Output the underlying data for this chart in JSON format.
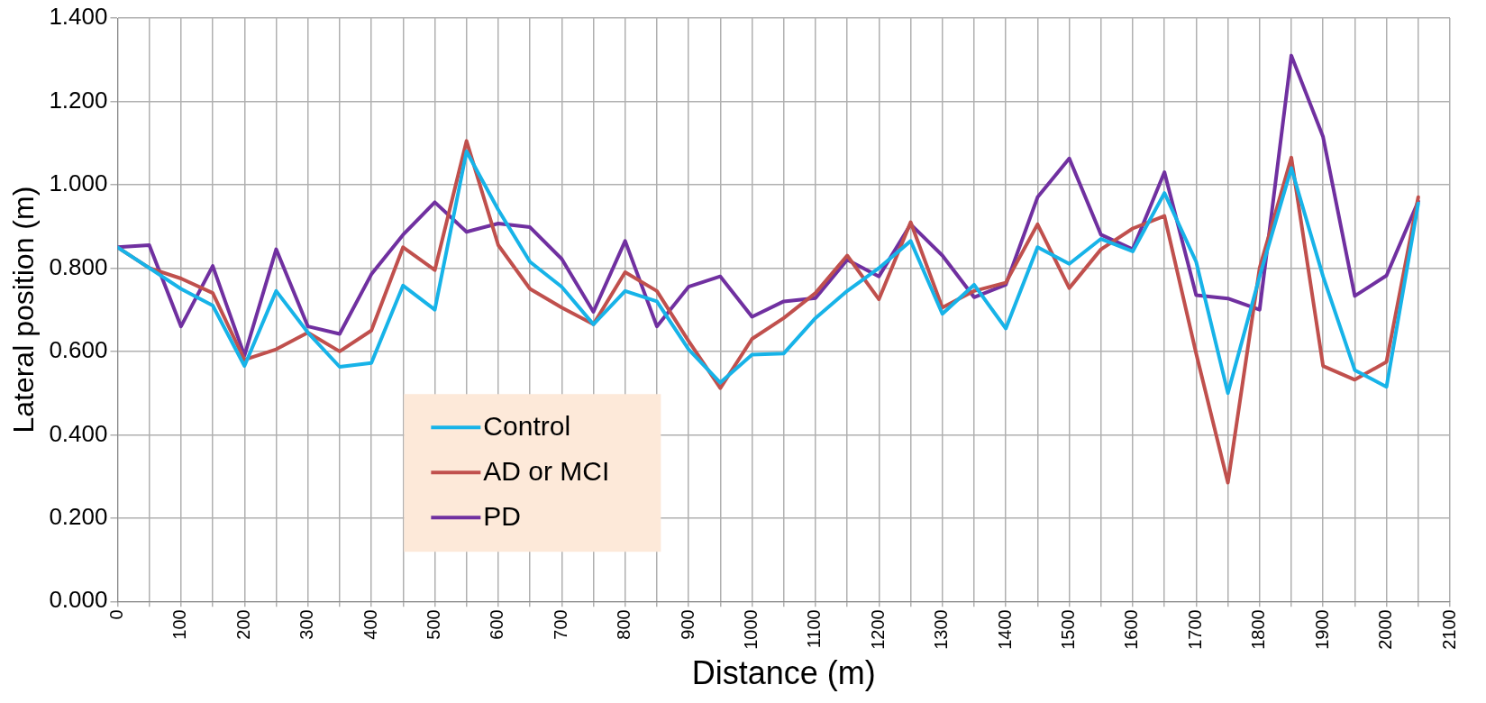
{
  "chart_data": {
    "type": "line",
    "xlabel": "Distance (m)",
    "ylabel": "Lateral position (m)",
    "x": [
      0,
      50,
      100,
      150,
      200,
      250,
      300,
      350,
      400,
      450,
      500,
      550,
      600,
      650,
      700,
      750,
      800,
      850,
      900,
      950,
      1000,
      1050,
      1100,
      1150,
      1200,
      1250,
      1300,
      1350,
      1400,
      1450,
      1500,
      1550,
      1600,
      1650,
      1700,
      1750,
      1800,
      1850,
      1900,
      1950,
      2000,
      2050
    ],
    "series": [
      {
        "name": "Control",
        "color": "#17b3e8",
        "values": [
          0.85,
          0.8,
          0.75,
          0.71,
          0.565,
          0.745,
          0.645,
          0.563,
          0.572,
          0.758,
          0.7,
          1.08,
          0.94,
          0.815,
          0.755,
          0.665,
          0.745,
          0.72,
          0.605,
          0.525,
          0.592,
          0.595,
          0.68,
          0.745,
          0.8,
          0.865,
          0.69,
          0.76,
          0.655,
          0.85,
          0.81,
          0.87,
          0.84,
          0.98,
          0.815,
          0.5,
          0.78,
          1.04,
          0.78,
          0.555,
          0.515,
          0.955
        ]
      },
      {
        "name": "AD or MCI",
        "color": "#c0504d",
        "values": [
          0.85,
          0.8,
          0.775,
          0.74,
          0.58,
          0.605,
          0.645,
          0.6,
          0.65,
          0.85,
          0.795,
          1.105,
          0.855,
          0.75,
          0.705,
          0.665,
          0.79,
          0.745,
          0.625,
          0.512,
          0.63,
          0.68,
          0.74,
          0.83,
          0.725,
          0.91,
          0.705,
          0.745,
          0.765,
          0.905,
          0.752,
          0.845,
          0.895,
          0.925,
          0.595,
          0.285,
          0.8,
          1.065,
          0.565,
          0.532,
          0.575,
          0.97
        ]
      },
      {
        "name": "PD",
        "color": "#7030a0",
        "values": [
          0.85,
          0.855,
          0.66,
          0.805,
          0.59,
          0.845,
          0.66,
          0.642,
          0.785,
          0.88,
          0.958,
          0.887,
          0.907,
          0.898,
          0.822,
          0.695,
          0.865,
          0.66,
          0.755,
          0.78,
          0.683,
          0.72,
          0.728,
          0.82,
          0.78,
          0.905,
          0.83,
          0.73,
          0.76,
          0.97,
          1.063,
          0.88,
          0.845,
          1.03,
          0.735,
          0.727,
          0.7,
          1.31,
          1.115,
          0.733,
          0.782,
          0.96
        ]
      }
    ],
    "xlim": [
      0,
      2100
    ],
    "xticks": [
      0,
      {
        "value": 50,
        "label": null
      },
      100,
      {
        "value": 150,
        "label": null
      },
      200,
      {
        "value": 250,
        "label": null
      },
      300,
      {
        "value": 350,
        "label": null
      },
      400,
      {
        "value": 450,
        "label": null
      },
      500,
      {
        "value": 550,
        "label": null
      },
      600,
      {
        "value": 650,
        "label": null
      },
      700,
      {
        "value": 750,
        "label": null
      },
      800,
      {
        "value": 850,
        "label": null
      },
      900,
      {
        "value": 950,
        "label": null
      },
      1000,
      {
        "value": 1050,
        "label": null
      },
      1100,
      {
        "value": 1150,
        "label": null
      },
      1200,
      {
        "value": 1250,
        "label": null
      },
      1300,
      {
        "value": 1350,
        "label": null
      },
      1400,
      {
        "value": 1450,
        "label": null
      },
      1500,
      {
        "value": 1550,
        "label": null
      },
      1600,
      {
        "value": 1650,
        "label": null
      },
      1700,
      {
        "value": 1750,
        "label": null
      },
      1800,
      {
        "value": 1850,
        "label": null
      },
      1900,
      {
        "value": 1950,
        "label": null
      },
      2000,
      {
        "value": 2050,
        "label": null
      },
      2100
    ],
    "ylim": [
      0,
      1.4
    ],
    "yticks": [
      {
        "value": 0,
        "label": "0.000"
      },
      {
        "value": 0.2,
        "label": "0.200"
      },
      {
        "value": 0.4,
        "label": "0.400"
      },
      {
        "value": 0.6,
        "label": "0.600"
      },
      {
        "value": 0.8,
        "label": "0.800"
      },
      {
        "value": 1.0,
        "label": "1.000"
      },
      {
        "value": 1.2,
        "label": "1.200"
      },
      {
        "value": 1.4,
        "label": "1.400"
      }
    ],
    "grid": true,
    "legend": "bottom left",
    "marker": "none",
    "line_style": "solid"
  }
}
